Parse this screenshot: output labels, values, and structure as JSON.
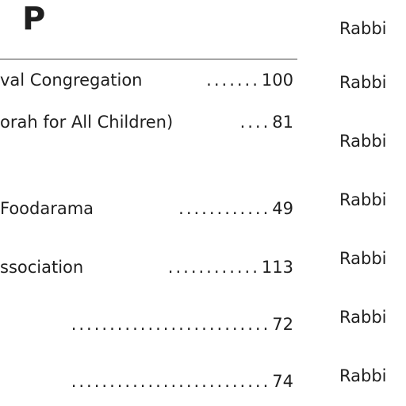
{
  "section": {
    "letter": "P"
  },
  "entries": [
    {
      "name": "val Congregation",
      "dots": ".......",
      "page": "100"
    },
    {
      "name": "orah for All Children)",
      "dots": "....",
      "page": "81"
    },
    {
      "name": "Foodarama",
      "dots": "............",
      "page": "49"
    },
    {
      "name": "ssociation",
      "dots": "............",
      "page": "113"
    },
    {
      "name": "",
      "dots": "..........................",
      "page": "72"
    },
    {
      "name": "",
      "dots": "..........................",
      "page": "74"
    }
  ],
  "right_column": [
    {
      "text": "Rabbi"
    },
    {
      "text": "Rabbi"
    },
    {
      "text": "Rabbi"
    },
    {
      "text": "Rabbi"
    },
    {
      "text": "Rabbi"
    },
    {
      "text": "Rabbi"
    },
    {
      "text": "Rabbi"
    }
  ]
}
